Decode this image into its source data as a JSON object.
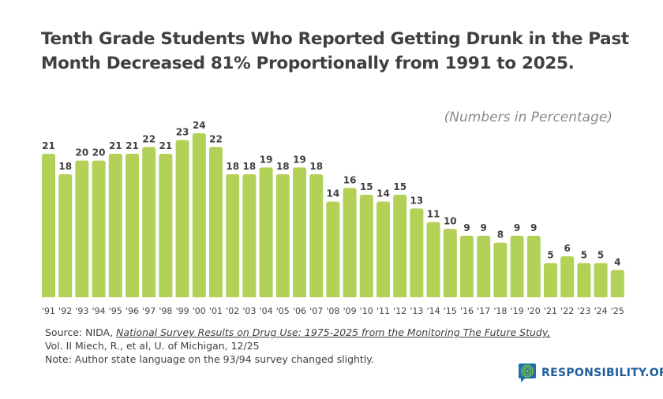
{
  "title_line1": "Tenth Grade Students Who Reported Getting Drunk in the Past",
  "title_line2": "Month Decreased 81% Proportionally from 1991 to 2025.",
  "unit_note": "(Numbers in Percentage)",
  "source": {
    "prefix": "Source: NIDA, ",
    "link": "National Survey Results on Drug Use: 1975-2025 from the Monitoring The Future Study,",
    "line2": "Vol. II Miech, R., et al, U. of Michigan, 12/25",
    "note": "Note: Author state language on the 93/94 survey changed slightly."
  },
  "logo": {
    "text": "RESPONSIBILITY.ORG",
    "icon": "target-speech-bubble-icon",
    "color": "#1d5f9c"
  },
  "chart_data": {
    "type": "bar",
    "title": "Tenth Grade Students Who Reported Getting Drunk in the Past Month Decreased 81% Proportionally from 1991 to 2025.",
    "categories": [
      "'91",
      "'92",
      "'93",
      "'94",
      "'95",
      "'96",
      "'97",
      "'98",
      "'99",
      "'00",
      "'01",
      "'02",
      "'03",
      "'04",
      "'05",
      "'06",
      "'07",
      "'08",
      "'09",
      "'10",
      "'11",
      "'12",
      "'13",
      "'14",
      "'15",
      "'16",
      "'17",
      "'18",
      "'19",
      "'20",
      "'21",
      "'22",
      "'23",
      "'24",
      "'25"
    ],
    "values": [
      21,
      18,
      20,
      20,
      21,
      21,
      22,
      21,
      23,
      24,
      22,
      18,
      18,
      19,
      18,
      19,
      18,
      14,
      16,
      15,
      14,
      15,
      13,
      11,
      10,
      9,
      9,
      8,
      9,
      9,
      5,
      6,
      5,
      5,
      4
    ],
    "xlabel": "",
    "ylabel": "",
    "ylim": [
      0,
      24
    ],
    "grid": false,
    "data_labels": true,
    "bar_color": "#b2d156",
    "label_color": "#404040"
  }
}
